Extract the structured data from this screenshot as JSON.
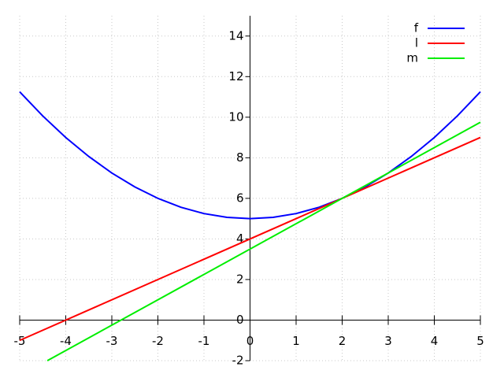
{
  "chart_data": {
    "type": "line",
    "xlim": [
      -5,
      5
    ],
    "ylim": [
      -2,
      15
    ],
    "xticks": [
      -5,
      -4,
      -3,
      -2,
      -1,
      0,
      1,
      2,
      3,
      4,
      5
    ],
    "yticks": [
      -2,
      0,
      2,
      4,
      6,
      8,
      10,
      12,
      14
    ],
    "grid": true,
    "legend": "top-right",
    "series": [
      {
        "name": "f",
        "color": "#0000ff",
        "x": [
          -5,
          -4.5,
          -4,
          -3.5,
          -3,
          -2.5,
          -2,
          -1.5,
          -1,
          -0.5,
          0,
          0.5,
          1,
          1.5,
          2,
          2.5,
          3,
          3.5,
          4,
          4.5,
          5
        ],
        "values": [
          11.25,
          10.0625,
          9,
          8.0625,
          7.25,
          6.5625,
          6,
          5.5625,
          5.25,
          5.0625,
          5,
          5.0625,
          5.25,
          5.5625,
          6,
          6.5625,
          7.25,
          8.0625,
          9,
          10.0625,
          11.25
        ]
      },
      {
        "name": "l",
        "color": "#ff0000",
        "x": [
          -5,
          5
        ],
        "values": [
          -1,
          9
        ]
      },
      {
        "name": "m",
        "color": "#00ee00",
        "x": [
          -4.4,
          5
        ],
        "values": [
          -2,
          9.75
        ]
      }
    ]
  }
}
